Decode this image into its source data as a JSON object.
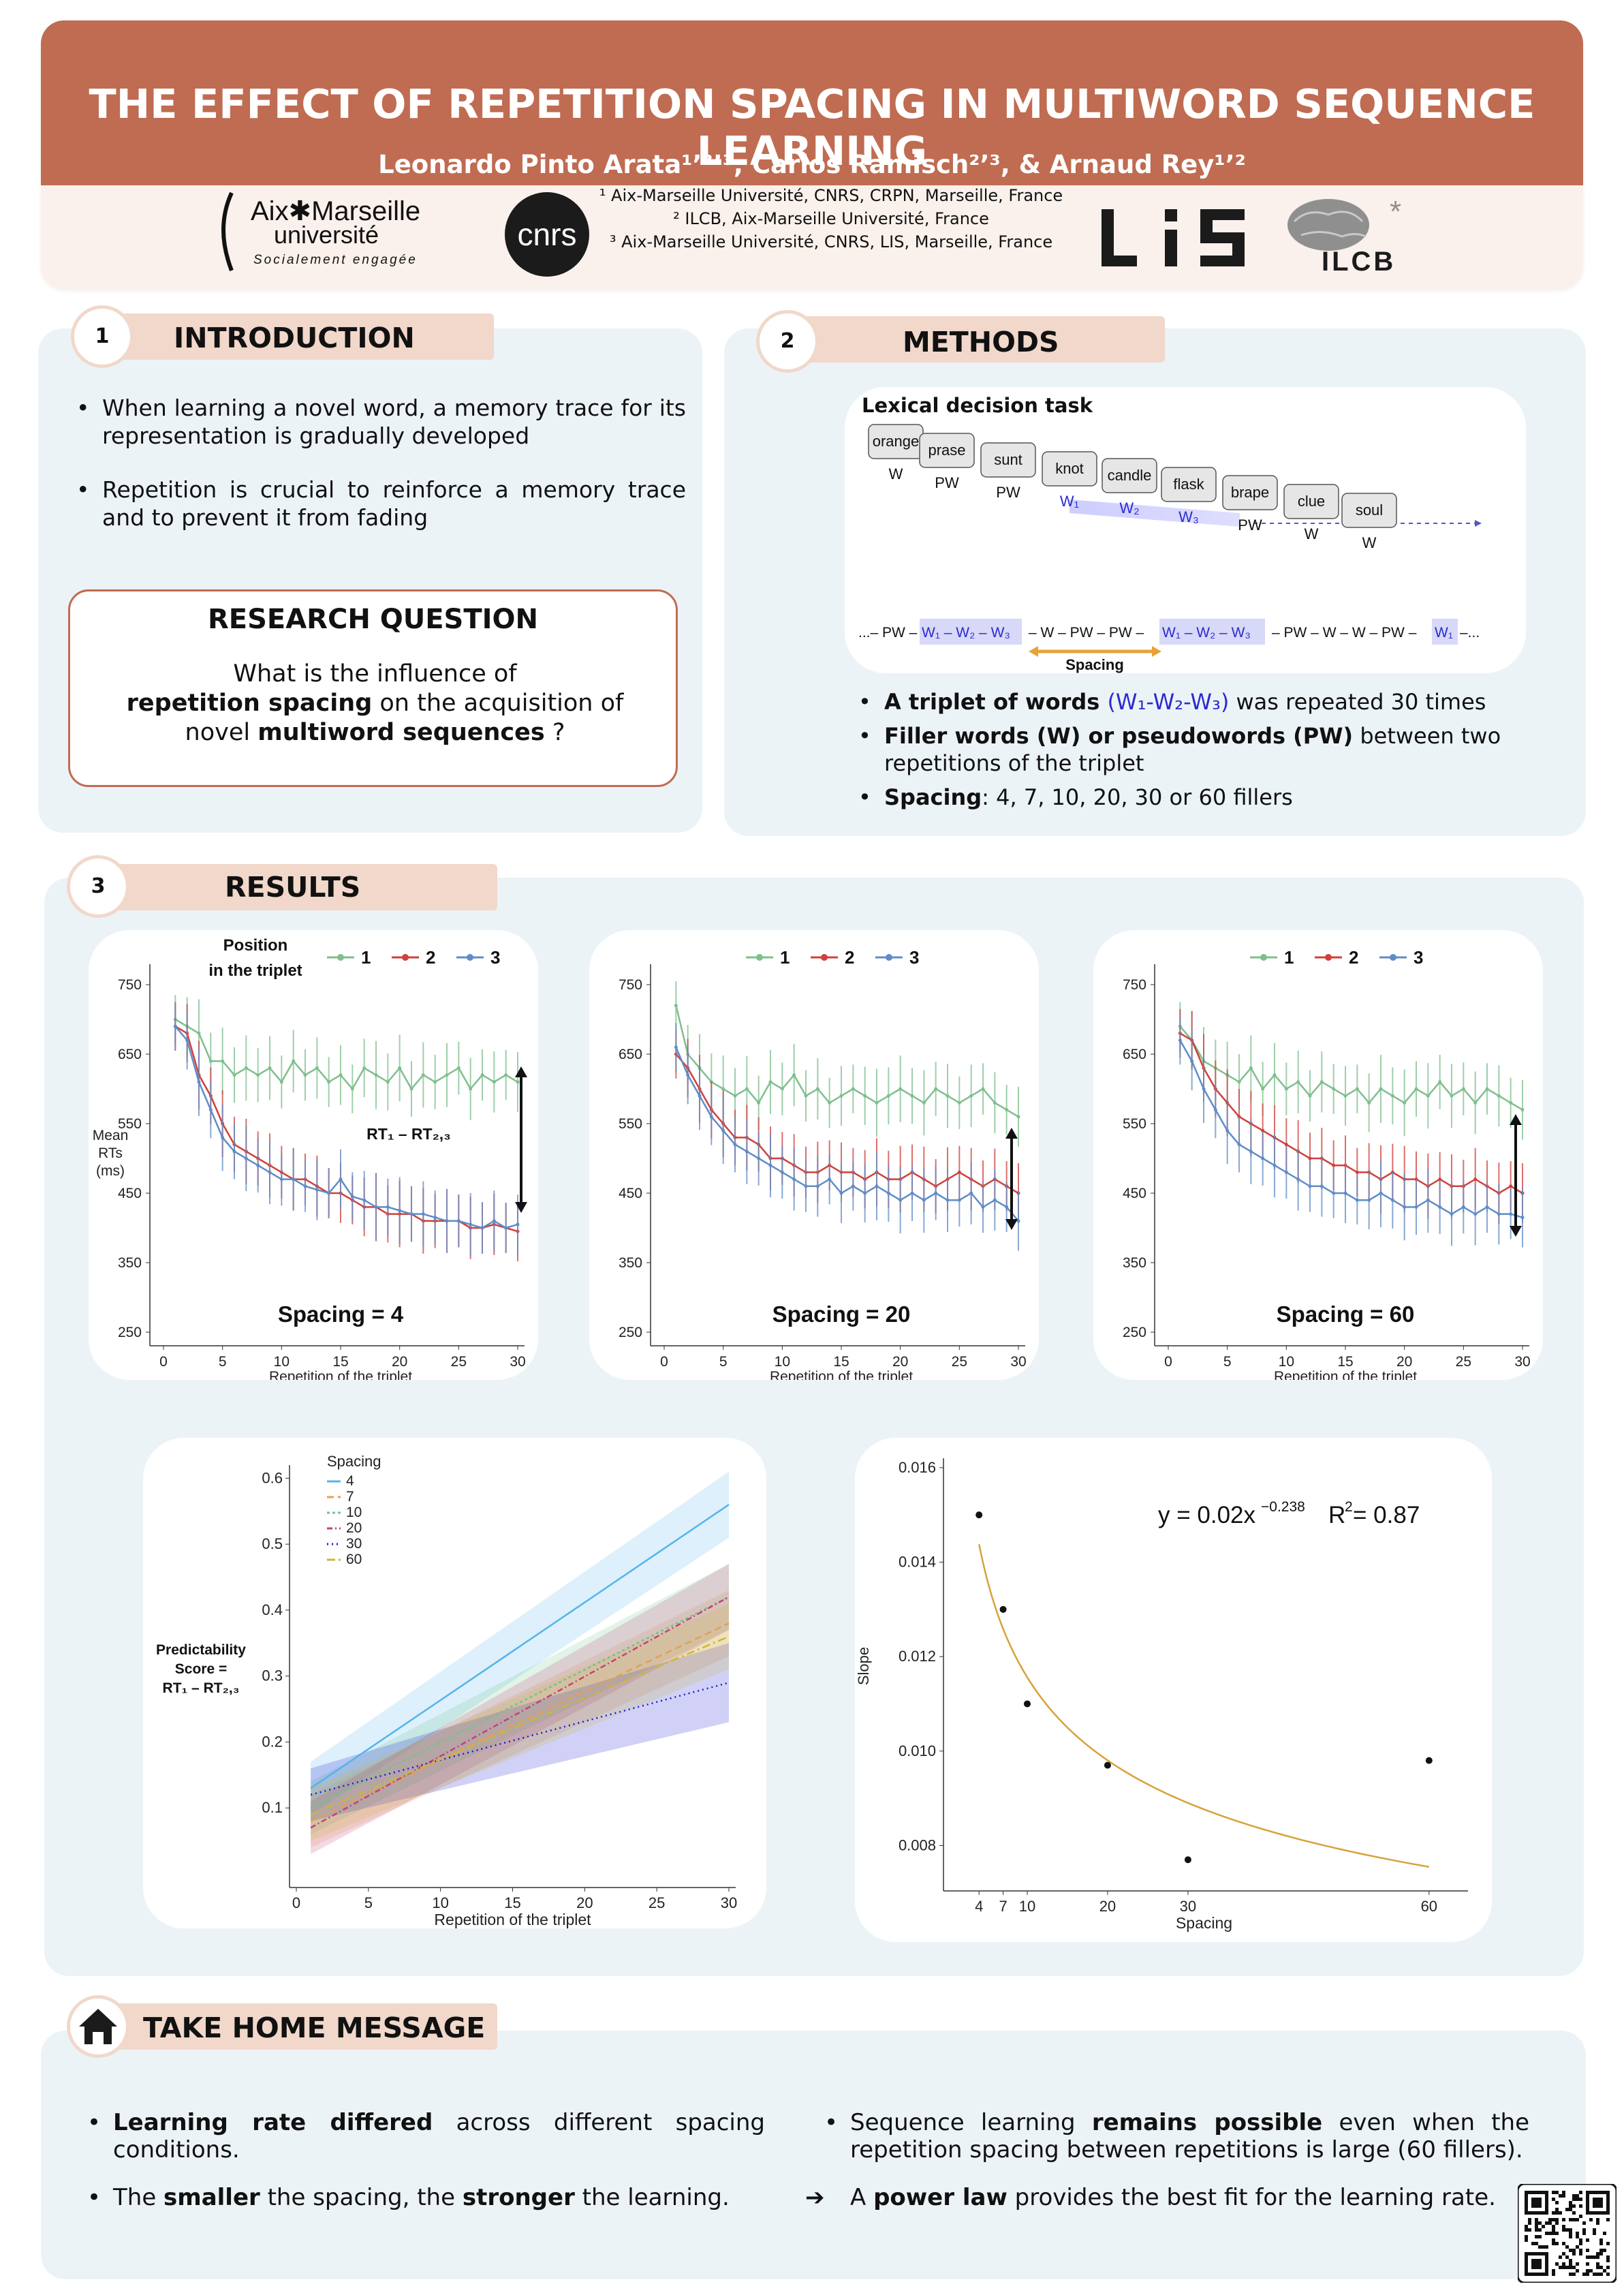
{
  "header": {
    "title": "THE EFFECT OF REPETITION SPACING IN MULTIWORD SEQUENCE LEARNING",
    "authors": "Leonardo Pinto Arata¹ʼ²ʼ³, Carlos Ramisch²ʼ³, & Arnaud Rey¹ʼ²",
    "affiliations": [
      "¹ Aix-Marseille Université, CNRS, CRPN, Marseille, France",
      "² ILCB, Aix-Marseille Université, France",
      "³ Aix-Marseille Université, CNRS, LIS, Marseille, France"
    ],
    "logos": {
      "amu_name_1": "Aix✱Marseille",
      "amu_name_2": "université",
      "amu_tagline": "Socialement engagée",
      "cnrs": "cnrs",
      "lis": "LIS",
      "ilcb": "ILCB"
    }
  },
  "introduction": {
    "number": "1",
    "title": "INTRODUCTION",
    "bullets": [
      "When learning a novel word, a memory trace for its representation is gradually developed",
      "Repetition is crucial to reinforce a memory trace and to prevent it from fading"
    ],
    "research_question": {
      "title": "RESEARCH QUESTION",
      "line1": "What is the influence of",
      "bold1": "repetition spacing",
      "mid": " on the acquisition of",
      "plain2": "novel ",
      "bold2": "multiword sequences",
      "end": " ?"
    }
  },
  "methods": {
    "number": "2",
    "title": "METHODS",
    "task_title": "Lexical decision task",
    "words": [
      {
        "word": "orange",
        "type": "W"
      },
      {
        "word": "prase",
        "type": "PW"
      },
      {
        "word": "sunt",
        "type": "PW"
      },
      {
        "word": "knot",
        "type": "W₁"
      },
      {
        "word": "candle",
        "type": "W₂"
      },
      {
        "word": "flask",
        "type": "W₃"
      },
      {
        "word": "brape",
        "type": "PW"
      },
      {
        "word": "clue",
        "type": "W"
      },
      {
        "word": "soul",
        "type": "W"
      }
    ],
    "sequence": [
      "...– PW –",
      "W₁ – W₂ – W₃",
      "– W – PW – PW –",
      "W₁ – W₂ – W₃",
      "– PW – W – W – PW –",
      "W₁",
      "–..."
    ],
    "spacing_label": "Spacing",
    "bullets": [
      {
        "bold": "A triplet of words ",
        "blue": "(W₁-W₂-W₃)",
        "rest": " was repeated 30 times"
      },
      {
        "bold": "Filler words (W) or pseudowords (PW)",
        "blue": "",
        "rest": " between two repetitions of the triplet"
      },
      {
        "bold": "Spacing",
        "blue": "",
        "rest": ": 4, 7, 10, 20, 30 or 60 fillers"
      }
    ]
  },
  "results": {
    "number": "3",
    "title": "RESULTS",
    "legend_title_1": "Position",
    "legend_title_2": "in the triplet",
    "y_axis_label": [
      "Mean",
      "RTs",
      "(ms)"
    ],
    "rt_label": "RT₁ – RT₂,₃",
    "x_axis_label": "Repetition of the triplet",
    "slope_equation": "y = 0.02x",
    "slope_exponent": "−0.238",
    "slope_r2": "R",
    "slope_r2_value": " = 0.87"
  },
  "chart_data": [
    {
      "type": "line",
      "title": "Spacing = 4",
      "xlabel": "Repetition of the triplet",
      "ylabel": "Mean RTs (ms)",
      "ylim": [
        250,
        750
      ],
      "xlim": [
        0,
        30
      ],
      "yticks": [
        250,
        350,
        450,
        550,
        650,
        750
      ],
      "xticks": [
        0,
        5,
        10,
        15,
        20,
        25,
        30
      ],
      "legend": [
        "1",
        "2",
        "3"
      ],
      "series": [
        {
          "name": "1",
          "color": "#7fbf8e",
          "values": [
            700,
            690,
            680,
            640,
            640,
            620,
            630,
            620,
            630,
            610,
            640,
            620,
            630,
            610,
            620,
            600,
            630,
            620,
            610,
            630,
            600,
            620,
            610,
            620,
            630,
            600,
            620,
            610,
            620,
            610
          ]
        },
        {
          "name": "2",
          "color": "#d1403a",
          "values": [
            690,
            680,
            620,
            590,
            550,
            520,
            510,
            500,
            490,
            480,
            470,
            470,
            460,
            450,
            450,
            440,
            430,
            430,
            420,
            420,
            420,
            410,
            410,
            410,
            410,
            400,
            400,
            405,
            400,
            395
          ]
        },
        {
          "name": "3",
          "color": "#5f8dc7",
          "values": [
            690,
            670,
            610,
            570,
            530,
            510,
            500,
            490,
            480,
            470,
            470,
            460,
            455,
            450,
            470,
            445,
            440,
            430,
            430,
            425,
            420,
            420,
            415,
            410,
            410,
            405,
            400,
            410,
            400,
            405
          ]
        }
      ]
    },
    {
      "type": "line",
      "title": "Spacing = 20",
      "xlabel": "Repetition of the triplet",
      "ylim": [
        250,
        750
      ],
      "xlim": [
        0,
        30
      ],
      "yticks": [
        250,
        350,
        450,
        550,
        650,
        750
      ],
      "xticks": [
        0,
        5,
        10,
        15,
        20,
        25,
        30
      ],
      "legend": [
        "1",
        "2",
        "3"
      ],
      "series": [
        {
          "name": "1",
          "color": "#7fbf8e",
          "values": [
            720,
            650,
            630,
            610,
            600,
            590,
            600,
            580,
            610,
            600,
            620,
            590,
            600,
            580,
            590,
            600,
            590,
            580,
            590,
            600,
            590,
            580,
            600,
            590,
            580,
            590,
            600,
            580,
            570,
            560
          ]
        },
        {
          "name": "2",
          "color": "#d1403a",
          "values": [
            650,
            630,
            600,
            570,
            550,
            530,
            530,
            520,
            500,
            500,
            490,
            480,
            480,
            490,
            480,
            480,
            470,
            480,
            470,
            470,
            480,
            470,
            460,
            470,
            480,
            470,
            460,
            470,
            460,
            450
          ]
        },
        {
          "name": "3",
          "color": "#5f8dc7",
          "values": [
            660,
            620,
            590,
            560,
            540,
            520,
            510,
            500,
            490,
            480,
            470,
            460,
            460,
            470,
            450,
            460,
            450,
            460,
            450,
            440,
            450,
            440,
            450,
            440,
            440,
            450,
            430,
            440,
            430,
            410
          ]
        }
      ]
    },
    {
      "type": "line",
      "title": "Spacing = 60",
      "xlabel": "Repetition of the triplet",
      "ylim": [
        250,
        750
      ],
      "xlim": [
        0,
        30
      ],
      "yticks": [
        250,
        350,
        450,
        550,
        650,
        750
      ],
      "xticks": [
        0,
        5,
        10,
        15,
        20,
        25,
        30
      ],
      "legend": [
        "1",
        "2",
        "3"
      ],
      "series": [
        {
          "name": "1",
          "color": "#7fbf8e",
          "values": [
            690,
            670,
            640,
            630,
            620,
            610,
            630,
            600,
            620,
            600,
            610,
            590,
            610,
            600,
            590,
            600,
            580,
            600,
            590,
            580,
            600,
            590,
            610,
            590,
            600,
            580,
            600,
            590,
            580,
            570
          ]
        },
        {
          "name": "2",
          "color": "#d1403a",
          "values": [
            680,
            670,
            630,
            600,
            580,
            560,
            550,
            540,
            530,
            520,
            510,
            500,
            500,
            490,
            490,
            480,
            480,
            470,
            480,
            470,
            470,
            460,
            470,
            460,
            460,
            470,
            460,
            450,
            460,
            450
          ]
        },
        {
          "name": "3",
          "color": "#5f8dc7",
          "values": [
            670,
            640,
            600,
            570,
            540,
            520,
            510,
            500,
            490,
            480,
            470,
            460,
            460,
            450,
            450,
            440,
            440,
            450,
            440,
            430,
            430,
            440,
            430,
            420,
            430,
            420,
            430,
            420,
            420,
            415
          ]
        }
      ]
    },
    {
      "type": "line",
      "xlabel": "Repetition of the triplet",
      "ylabel": "Predictability Score = RT₁ – RT₂,₃",
      "xlim": [
        0,
        30
      ],
      "ylim": [
        0,
        0.62
      ],
      "yticks": [
        0.1,
        0.2,
        0.3,
        0.4,
        0.5,
        0.6
      ],
      "xticks": [
        0,
        5,
        10,
        15,
        20,
        25,
        30
      ],
      "legend_title": "Spacing",
      "series": [
        {
          "name": "4",
          "color": "#56b4e9",
          "x": [
            1,
            30
          ],
          "values": [
            0.13,
            0.56
          ],
          "band": [
            0.04,
            0.05
          ]
        },
        {
          "name": "7",
          "color": "#e69f50",
          "x": [
            1,
            30
          ],
          "values": [
            0.08,
            0.38
          ],
          "band": [
            0.04,
            0.05
          ]
        },
        {
          "name": "10",
          "color": "#6fc48e",
          "x": [
            1,
            30
          ],
          "values": [
            0.1,
            0.42
          ],
          "band": [
            0.04,
            0.05
          ]
        },
        {
          "name": "20",
          "color": "#c4407a",
          "x": [
            1,
            30
          ],
          "values": [
            0.07,
            0.42
          ],
          "band": [
            0.04,
            0.05
          ]
        },
        {
          "name": "30",
          "color": "#1a1ad6",
          "x": [
            1,
            30
          ],
          "values": [
            0.12,
            0.29
          ],
          "band": [
            0.04,
            0.06
          ]
        },
        {
          "name": "60",
          "color": "#c9b83a",
          "x": [
            1,
            30
          ],
          "values": [
            0.09,
            0.36
          ],
          "band": [
            0.04,
            0.05
          ]
        }
      ]
    },
    {
      "type": "scatter",
      "xlabel": "Spacing",
      "ylabel": "Slope",
      "xticks": [
        4,
        7,
        10,
        20,
        30,
        60
      ],
      "yticks": [
        0.008,
        0.01,
        0.012,
        0.014,
        0.016
      ],
      "ylim": [
        0.0074,
        0.0162
      ],
      "xlim": [
        0,
        64
      ],
      "points": [
        {
          "x": 4,
          "y": 0.015
        },
        {
          "x": 7,
          "y": 0.013
        },
        {
          "x": 10,
          "y": 0.011
        },
        {
          "x": 20,
          "y": 0.0097
        },
        {
          "x": 30,
          "y": 0.0077
        },
        {
          "x": 60,
          "y": 0.0098
        }
      ],
      "fit": {
        "a": 0.02,
        "b": -0.238,
        "r2": 0.87,
        "color": "#d7a23a"
      }
    }
  ],
  "take_home": {
    "title": "TAKE HOME MESSAGE",
    "left": [
      {
        "b1": "Learning rate differed",
        "t1": " across different spacing conditions.",
        "b2": "",
        "t2": ""
      },
      {
        "t0": "The ",
        "b1": "smaller",
        "t1": " the spacing, the ",
        "b2": "stronger",
        "t2": " the learning."
      }
    ],
    "right": [
      {
        "t0": "Sequence learning ",
        "b1": "remains possible",
        "t1": " even when the repetition spacing between repetitions is large (60 fillers)."
      },
      {
        "t0": "A ",
        "b1": "power law",
        "t1": " provides the best fit for the learning rate."
      }
    ]
  }
}
